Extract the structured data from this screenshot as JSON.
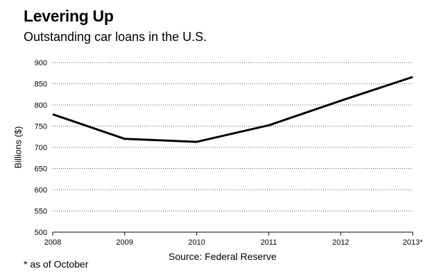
{
  "chart_data": {
    "type": "line",
    "title": "Levering Up",
    "subtitle": "Outstanding car loans in the U.S.",
    "ylabel": "Billions ($)",
    "xlabel": "",
    "x": [
      "2008",
      "2009",
      "2010",
      "2011",
      "2012",
      "2013*"
    ],
    "series": [
      {
        "values": [
          778,
          720,
          713,
          752,
          810,
          866
        ]
      }
    ],
    "ylim": [
      500,
      900
    ],
    "yticks": [
      500,
      550,
      600,
      650,
      700,
      750,
      800,
      850,
      900
    ],
    "grid": "horizontal dotted",
    "line_color": "#000000",
    "source": "Source: Federal Reserve",
    "footnote": "* as of October"
  }
}
